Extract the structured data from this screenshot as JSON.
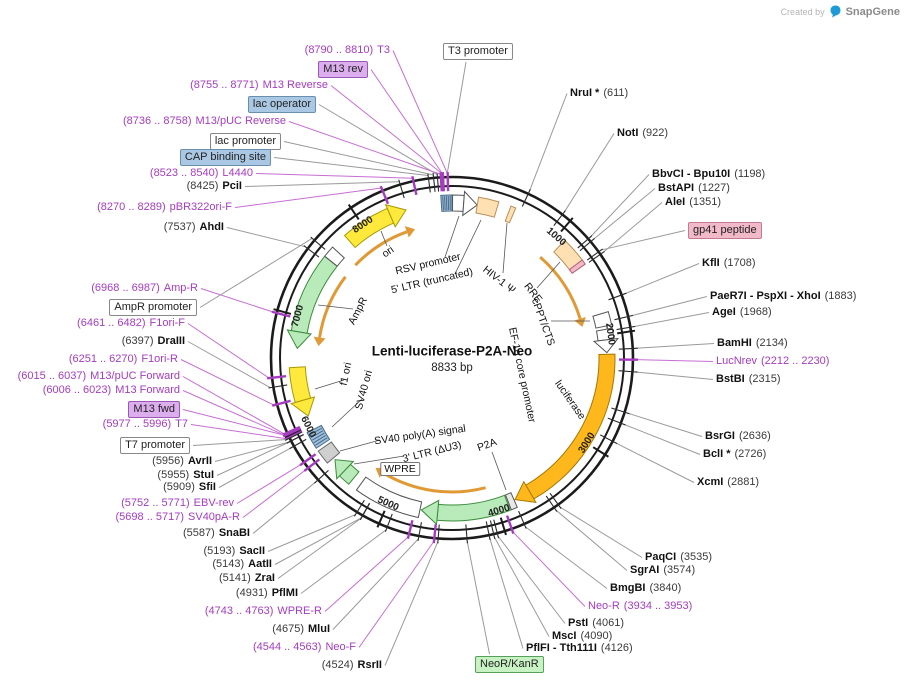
{
  "header": {
    "created_by": "Created by",
    "brand": "SnapGene"
  },
  "plasmid": {
    "title": "Lenti-luciferase-P2A-Neo",
    "length": "8833 bp"
  },
  "ticks": [
    "1000",
    "2000",
    "3000",
    "4000",
    "5000",
    "6000",
    "7000",
    "8000"
  ],
  "colors": {
    "primer_purple": "#a53cc0",
    "ring_black": "#1b1b1b",
    "luciferase_orange": "#ffb81c",
    "feature_tan": "#ffe0b3",
    "feature_green": "#b9eab9",
    "feature_yellow": "#ffe93d",
    "flow_amber": "#e09a35",
    "box_purple": "#ddaeee",
    "box_blue": "#aac8e4",
    "box_pink": "#f2b9c8",
    "box_green": "#c9f2c4"
  },
  "labels": {
    "top": {
      "name": "T3 promoter"
    },
    "bottom": {
      "name": "NeoR/KanR"
    },
    "left": [
      {
        "pos": "(8790 .. 8810)",
        "name": "T3"
      },
      {
        "name": "M13 rev"
      },
      {
        "pos": "(8755 .. 8771)",
        "name": "M13 Reverse"
      },
      {
        "name": "lac operator"
      },
      {
        "pos": "(8736 .. 8758)",
        "name": "M13/pUC Reverse"
      },
      {
        "name": "lac promoter"
      },
      {
        "name": "CAP binding site"
      },
      {
        "pos": "(8523 .. 8540)",
        "name": "L4440"
      },
      {
        "pos": "(8425)",
        "name": "PciI"
      },
      {
        "pos": "(8270 .. 8289)",
        "name": "pBR322ori-F"
      },
      {
        "pos": "(7537)",
        "name": "AhdI"
      },
      {
        "pos": "(6968 .. 6987)",
        "name": "Amp-R"
      },
      {
        "name": "AmpR promoter"
      },
      {
        "pos": "(6461 .. 6482)",
        "name": "F1ori-F"
      },
      {
        "pos": "(6397)",
        "name": "DraIII"
      },
      {
        "pos": "(6251 .. 6270)",
        "name": "F1ori-R"
      },
      {
        "pos": "(6015 .. 6037)",
        "name": "M13/pUC Forward"
      },
      {
        "pos": "(6006 .. 6023)",
        "name": "M13 Forward"
      },
      {
        "name": "M13 fwd"
      },
      {
        "pos": "(5977 .. 5996)",
        "name": "T7"
      },
      {
        "name": "T7 promoter"
      },
      {
        "pos": "(5956)",
        "name": "AvrII"
      },
      {
        "pos": "(5955)",
        "name": "StuI"
      },
      {
        "pos": "(5909)",
        "name": "SfiI"
      },
      {
        "pos": "(5752 .. 5771)",
        "name": "EBV-rev"
      },
      {
        "pos": "(5698 .. 5717)",
        "name": "SV40pA-R"
      },
      {
        "pos": "(5587)",
        "name": "SnaBI"
      },
      {
        "pos": "(5193)",
        "name": "SacII"
      },
      {
        "pos": "(5143)",
        "name": "AatII"
      },
      {
        "pos": "(5141)",
        "name": "ZraI"
      },
      {
        "pos": "(4931)",
        "name": "PflMI"
      },
      {
        "pos": "(4743 .. 4763)",
        "name": "WPRE-R"
      },
      {
        "pos": "(4675)",
        "name": "MluI"
      },
      {
        "pos": "(4544 .. 4563)",
        "name": "Neo-F"
      },
      {
        "pos": "(4524)",
        "name": "RsrII"
      }
    ],
    "right": [
      {
        "name": "NruI *",
        "pos": "(611)"
      },
      {
        "name": "NotI",
        "pos": "(922)"
      },
      {
        "name": "BbvCI - Bpu10I",
        "pos": "(1198)"
      },
      {
        "name": "BstAPI",
        "pos": "(1227)"
      },
      {
        "name": "AleI",
        "pos": "(1351)"
      },
      {
        "name": "gp41 peptide"
      },
      {
        "name": "KflI",
        "pos": "(1708)"
      },
      {
        "name": "PaeR7I - PspXI - XhoI",
        "pos": "(1883)"
      },
      {
        "name": "AgeI",
        "pos": "(1968)"
      },
      {
        "name": "BamHI",
        "pos": "(2134)"
      },
      {
        "name": "LucNrev",
        "pos": "(2212 .. 2230)"
      },
      {
        "name": "BstBI",
        "pos": "(2315)"
      },
      {
        "name": "BsrGI",
        "pos": "(2636)"
      },
      {
        "name": "BclI *",
        "pos": "(2726)"
      },
      {
        "name": "XcmI",
        "pos": "(2881)"
      },
      {
        "name": "PaqCI",
        "pos": "(3535)"
      },
      {
        "name": "SgrAI",
        "pos": "(3574)"
      },
      {
        "name": "BmgBI",
        "pos": "(3840)"
      },
      {
        "name": "Neo-R",
        "pos": "(3934 .. 3953)"
      },
      {
        "name": "PstI",
        "pos": "(4061)"
      },
      {
        "name": "MscI",
        "pos": "(4090)"
      },
      {
        "name": "PflFI - Tth111I",
        "pos": "(4126)"
      }
    ]
  },
  "internal_labels": [
    {
      "text": "ori"
    },
    {
      "text": "RSV promoter"
    },
    {
      "text": "5' LTR (truncated)"
    },
    {
      "text": "HIV-1 Ψ"
    },
    {
      "text": "RRE"
    },
    {
      "text": "cPPT/CTS"
    },
    {
      "text": "EF-1α core promoter"
    },
    {
      "text": "luciferase"
    },
    {
      "text": "P2A"
    },
    {
      "text": "SV40 poly(A) signal"
    },
    {
      "text": "3' LTR (ΔU3)"
    },
    {
      "text": "WPRE"
    },
    {
      "text": "SV40 ori"
    },
    {
      "text": "f1 ori"
    },
    {
      "text": "AmpR"
    }
  ],
  "map": {
    "total_bp": 8833,
    "features": [
      {
        "name": "primer-cluster",
        "start": 8736,
        "end": 8833,
        "kind": "box",
        "color": "#9fc0dc",
        "border": "#4a6a8a",
        "striped": true
      },
      {
        "name": "RSV promoter",
        "start": 5,
        "end": 229,
        "kind": "arrow",
        "dir": 1,
        "color": "#ffffff",
        "border": "#555555"
      },
      {
        "name": "5' LTR (truncated)",
        "start": 230,
        "end": 410,
        "kind": "box",
        "color": "#ffe0b3",
        "border": "#b8905a"
      },
      {
        "name": "HIV-1 psi",
        "start": 521,
        "end": 565,
        "kind": "box",
        "color": "#ffe0b3",
        "border": "#b8905a"
      },
      {
        "name": "RRE",
        "start": 1075,
        "end": 1308,
        "kind": "box",
        "color": "#ffe0b3",
        "border": "#b8905a"
      },
      {
        "name": "gp41 peptide",
        "start": 1301,
        "end": 1345,
        "kind": "box",
        "color": "#f2b9c8",
        "border": "#b06078"
      },
      {
        "name": "cPPT/CTS",
        "start": 1803,
        "end": 1920,
        "kind": "box",
        "color": "#ffffff",
        "border": "#555555"
      },
      {
        "name": "EF-1a core promoter",
        "start": 1949,
        "end": 2160,
        "kind": "arrow",
        "dir": 1,
        "color": "#ffffff",
        "border": "#555555"
      },
      {
        "name": "luciferase",
        "start": 2175,
        "end": 3827,
        "kind": "arrow",
        "dir": 1,
        "color": "#ffb81c",
        "border": "#a87600"
      },
      {
        "name": "P2A",
        "start": 3837,
        "end": 3893,
        "kind": "box",
        "color": "#e8e8e8",
        "border": "#555555"
      },
      {
        "name": "NeoR/KanR",
        "start": 3903,
        "end": 4697,
        "kind": "arrow",
        "dir": 1,
        "color": "#b9eab9",
        "border": "#3d8b3d"
      },
      {
        "name": "WPRE",
        "start": 4709,
        "end": 5297,
        "kind": "box",
        "color": "#ffffff",
        "border": "#555555"
      },
      {
        "name": "3' LTR (delta-U3)",
        "start": 5380,
        "end": 5619,
        "kind": "arrow",
        "dir": 1,
        "color": "#b9eab9",
        "border": "#3d8b3d"
      },
      {
        "name": "SV40 poly(A) signal",
        "start": 5640,
        "end": 5770,
        "kind": "box",
        "color": "#cfcfcf",
        "border": "#6a6a6a"
      },
      {
        "name": "SV40 ori",
        "start": 5800,
        "end": 5955,
        "kind": "box",
        "color": "#9fc0dc",
        "border": "#4a6a8a",
        "striped": true
      },
      {
        "name": "f1 ori",
        "start": 6086,
        "end": 6541,
        "kind": "arrow",
        "dir": -1,
        "color": "#ffe93d",
        "border": "#a89a00"
      },
      {
        "name": "AmpR",
        "start": 6712,
        "end": 7572,
        "kind": "arrow",
        "dir": -1,
        "color": "#b9eab9",
        "border": "#3d8b3d"
      },
      {
        "name": "AmpR promoter",
        "start": 7573,
        "end": 7677,
        "kind": "box",
        "color": "#ffffff",
        "border": "#555555"
      },
      {
        "name": "ori",
        "start": 7821,
        "end": 8409,
        "kind": "arrow",
        "dir": 1,
        "color": "#ffe93d",
        "border": "#a89a00"
      }
    ],
    "flow_arrows": [
      {
        "start": 1010,
        "end": 1880,
        "dir": 1
      },
      {
        "start": 4060,
        "end": 5270,
        "dir": 1
      },
      {
        "start": 6750,
        "end": 7540,
        "dir": -1
      },
      {
        "start": 7700,
        "end": 8440,
        "dir": 1
      }
    ]
  }
}
